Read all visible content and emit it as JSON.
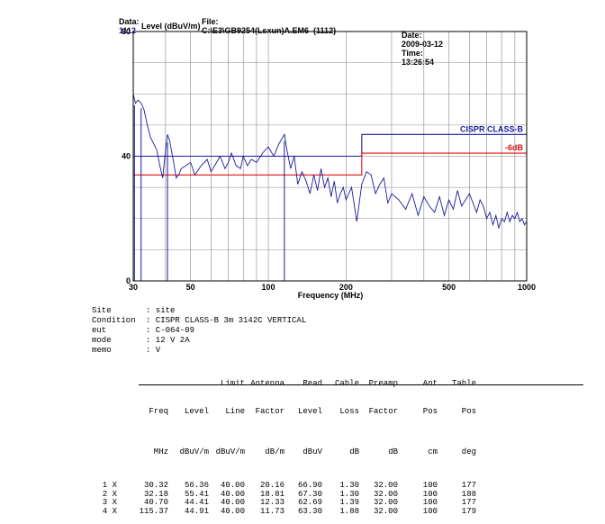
{
  "header": {
    "data_label": "Data:",
    "data_value": "1112",
    "file_label": "File:",
    "file_value": "C:\\E3\\GB9254(Lsxun)A.EM6  (1112)",
    "date_label": "Date:",
    "date_value": "2009-03-12",
    "time_label": "Time:",
    "time_value": "13:26:54"
  },
  "chart_data": {
    "type": "line",
    "ylabel": "Level (dBuV/m)",
    "xlabel": "Frequency (MHz)",
    "x_scale": "log",
    "xlim": [
      30,
      1000
    ],
    "ylim": [
      0,
      80
    ],
    "x_ticks": [
      "30",
      "50",
      "100",
      "200",
      "500",
      "1000"
    ],
    "y_ticks": [
      "0",
      "40",
      "80"
    ],
    "grid": true,
    "limit_lines": [
      {
        "name": "CISPR CLASS-B",
        "color": "#1a1a9a",
        "segments": [
          [
            30,
            230,
            40
          ],
          [
            230,
            1000,
            47
          ]
        ]
      },
      {
        "name": "-6dB",
        "color": "#e01010",
        "segments": [
          [
            30,
            230,
            34
          ],
          [
            230,
            1000,
            41
          ]
        ]
      }
    ],
    "markers": [
      {
        "freq": 30.32,
        "level": 56.36
      },
      {
        "freq": 32.18,
        "level": 55.41
      },
      {
        "freq": 40.7,
        "level": 44.41
      },
      {
        "freq": 115.37,
        "level": 44.91
      }
    ],
    "series": [
      {
        "color": "#1a1a9a",
        "x": [
          30,
          30.6,
          31.3,
          32.2,
          33,
          34,
          35,
          36,
          37,
          38,
          39,
          40,
          40.7,
          41.5,
          43,
          44,
          45,
          46,
          48,
          50,
          52,
          55,
          58,
          60,
          62,
          65,
          68,
          70,
          72,
          75,
          78,
          80,
          83,
          86,
          90,
          95,
          100,
          105,
          110,
          115.4,
          118,
          122,
          126,
          130,
          135,
          140,
          145,
          150,
          155,
          160,
          165,
          170,
          175,
          180,
          185,
          190,
          195,
          200,
          210,
          220,
          230,
          240,
          250,
          260,
          270,
          280,
          290,
          300,
          320,
          340,
          360,
          380,
          400,
          420,
          440,
          460,
          480,
          500,
          520,
          540,
          560,
          580,
          600,
          620,
          640,
          660,
          680,
          700,
          720,
          740,
          760,
          780,
          800,
          820,
          840,
          860,
          880,
          900,
          920,
          940,
          960,
          980,
          1000
        ],
        "y": [
          60,
          57,
          58,
          57,
          55,
          50,
          46,
          44,
          42,
          37,
          33,
          42,
          47,
          45,
          38,
          33,
          34,
          36,
          37,
          38,
          34,
          37,
          39,
          35,
          37,
          40,
          36,
          38,
          41,
          37,
          36,
          40,
          37,
          39,
          38,
          41,
          43,
          40,
          44,
          47,
          42,
          36,
          40,
          31,
          35,
          32,
          28,
          34,
          29,
          36,
          30,
          33,
          27,
          32,
          25,
          28,
          30,
          26,
          30,
          19,
          31,
          35,
          34,
          28,
          31,
          33,
          25,
          28,
          26,
          23,
          28,
          21,
          27,
          24,
          22,
          27,
          21,
          26,
          23,
          29,
          24,
          26,
          28,
          25,
          22,
          26,
          24,
          20,
          22,
          18,
          21,
          17,
          20,
          19,
          22,
          19,
          21,
          20,
          22,
          19,
          20,
          18,
          19
        ]
      }
    ]
  },
  "info": [
    {
      "key": "Site",
      "value": ": site"
    },
    {
      "key": "Condition",
      "value": ": CISPR CLASS-B 3m 3142C VERTICAL"
    },
    {
      "key": "eut",
      "value": ": C-064-09"
    },
    {
      "key": "mode",
      "value": ": 12 V 2A"
    },
    {
      "key": "memo",
      "value": ": V"
    }
  ],
  "table": {
    "header_top": [
      "",
      "",
      "",
      "Limit",
      "Antenna",
      "Read",
      "Cable",
      "Preamp",
      "Ant",
      "Table"
    ],
    "header_mid": [
      "",
      "Freq",
      "Level",
      "Line",
      "Factor",
      "Level",
      "Loss",
      "Factor",
      "Pos",
      "Pos"
    ],
    "units": [
      "",
      "MHz",
      "dBuV/m",
      "dBuV/m",
      "dB/m",
      "dBuV",
      "dB",
      "dB",
      "cm",
      "deg"
    ],
    "rows": [
      [
        "1 X",
        "30.32",
        "56.36",
        "40.00",
        "20.16",
        "66.90",
        "1.30",
        "32.00",
        "100",
        "177"
      ],
      [
        "2 X",
        "32.18",
        "55.41",
        "40.00",
        "18.81",
        "67.30",
        "1.30",
        "32.00",
        "100",
        "188"
      ],
      [
        "3 X",
        "40.70",
        "44.41",
        "40.00",
        "12.33",
        "62.69",
        "1.39",
        "32.00",
        "100",
        "177"
      ],
      [
        "4 X",
        "115.37",
        "44.91",
        "40.00",
        "11.73",
        "63.30",
        "1.88",
        "32.00",
        "100",
        "179"
      ]
    ]
  }
}
